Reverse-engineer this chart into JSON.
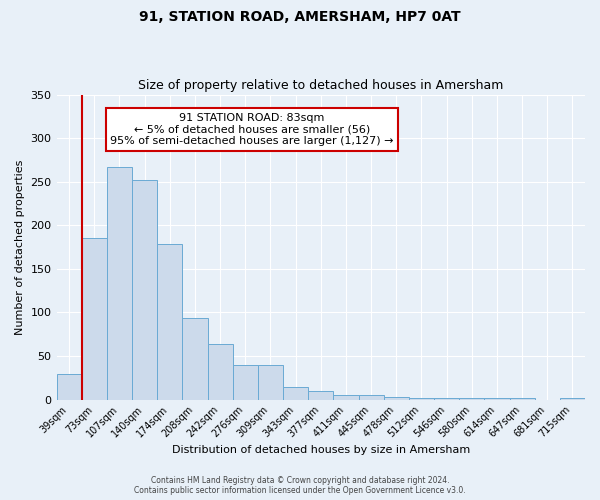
{
  "title": "91, STATION ROAD, AMERSHAM, HP7 0AT",
  "subtitle": "Size of property relative to detached houses in Amersham",
  "xlabel": "Distribution of detached houses by size in Amersham",
  "ylabel": "Number of detached properties",
  "bin_labels": [
    "39sqm",
    "73sqm",
    "107sqm",
    "140sqm",
    "174sqm",
    "208sqm",
    "242sqm",
    "276sqm",
    "309sqm",
    "343sqm",
    "377sqm",
    "411sqm",
    "445sqm",
    "478sqm",
    "512sqm",
    "546sqm",
    "580sqm",
    "614sqm",
    "647sqm",
    "681sqm",
    "715sqm"
  ],
  "bar_heights": [
    30,
    186,
    267,
    252,
    179,
    94,
    64,
    40,
    40,
    14,
    10,
    5,
    5,
    3,
    2,
    2,
    2,
    2,
    2,
    0,
    2
  ],
  "bar_color": "#ccdaeb",
  "bar_edge_color": "#6aaad4",
  "marker_line_color": "#cc0000",
  "annotation_line1": "91 STATION ROAD: 83sqm",
  "annotation_line2": "← 5% of detached houses are smaller (56)",
  "annotation_line3": "95% of semi-detached houses are larger (1,127) →",
  "annotation_box_facecolor": "#ffffff",
  "annotation_box_edgecolor": "#cc0000",
  "footer1": "Contains HM Land Registry data © Crown copyright and database right 2024.",
  "footer2": "Contains public sector information licensed under the Open Government Licence v3.0.",
  "ylim": [
    0,
    350
  ],
  "yticks": [
    0,
    50,
    100,
    150,
    200,
    250,
    300,
    350
  ],
  "background_color": "#e8f0f8",
  "title_fontsize": 10,
  "subtitle_fontsize": 9,
  "ylabel_fontsize": 8,
  "xlabel_fontsize": 8,
  "tick_fontsize": 7,
  "footer_fontsize": 5.5,
  "annotation_fontsize": 8
}
